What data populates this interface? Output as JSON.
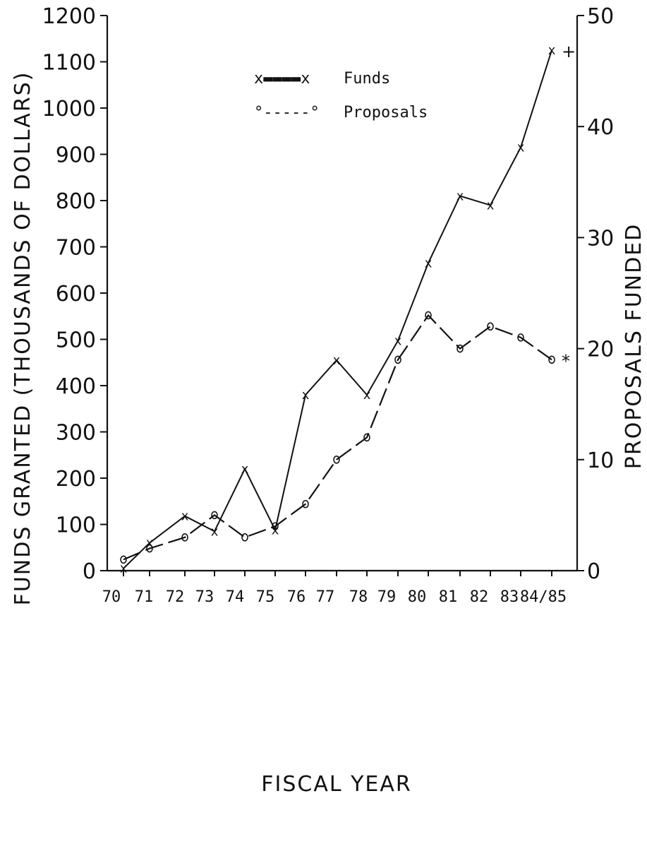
{
  "chart_data": {
    "type": "line",
    "xlabel": "FISCAL YEAR",
    "ylabel": "FUNDS GRANTED (THOUSANDS OF DOLLARS)",
    "y2label": "PROPOSALS FUNDED",
    "categories": [
      "70",
      "71",
      "72",
      "73",
      "74",
      "75",
      "76",
      "77",
      "78",
      "79",
      "80",
      "81",
      "82",
      "83",
      "84/85"
    ],
    "x_tick_labels": [
      "70",
      "71",
      "72",
      "73",
      "74",
      "75",
      "76",
      "77",
      "78",
      "79",
      "80",
      "81",
      "82",
      "83",
      "84/85"
    ],
    "ylim": [
      0,
      1200
    ],
    "y_ticks": [
      0,
      100,
      200,
      300,
      400,
      500,
      600,
      700,
      800,
      900,
      1000,
      1100,
      1200
    ],
    "y2lim": [
      0,
      50
    ],
    "y2_ticks": [
      0,
      10,
      20,
      30,
      40,
      50
    ],
    "legend_position": "top-center",
    "series": [
      {
        "name": "Funds",
        "axis": "left",
        "marker": "x",
        "style": "solid",
        "values": [
          5,
          60,
          118,
          85,
          220,
          88,
          380,
          455,
          380,
          497,
          665,
          810,
          790,
          915,
          1125
        ],
        "end_annotation": "+"
      },
      {
        "name": "Proposals",
        "axis": "right",
        "marker": "o",
        "style": "dashed",
        "values": [
          1,
          2,
          3,
          5,
          3,
          4,
          6,
          10,
          12,
          19,
          23,
          20,
          22,
          21,
          19
        ],
        "end_annotation": "*"
      }
    ],
    "legend": {
      "funds_symbol": "x▬▬▬▬x",
      "funds_label": "Funds",
      "proposals_symbol": "°-----°",
      "proposals_label": "Proposals"
    }
  }
}
